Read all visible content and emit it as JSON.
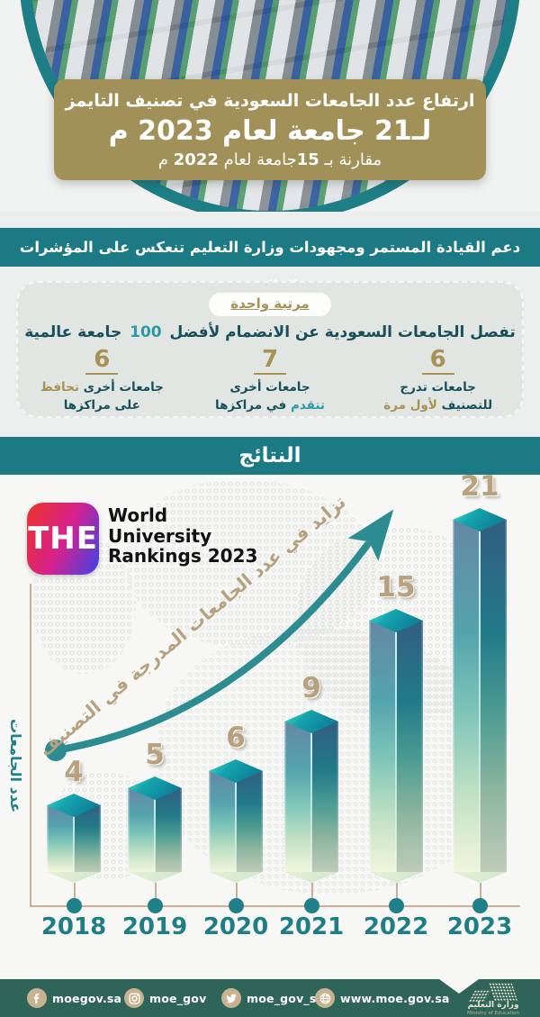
{
  "header": {
    "title_line1": "ارتفاع عدد الجامعات السعودية في تصنيف التايمز",
    "title_line2": "لـ21 جامعة لعام 2023 م",
    "line3": {
      "p1": "مقارنة بـ ",
      "n1": "15",
      "p2": "جامعة لعام ",
      "n2": "2022",
      "p3": " م"
    }
  },
  "support_banner": "دعم القيادة المستمر ومجهودات وزارة التعليم تنعكس على المؤشرات العالمية",
  "gap_card": {
    "badge": "مرتبة واحدة",
    "headline_prefix": "تفصل الجامعات السعودية عن الانضمام لأفضل",
    "headline_number": "100",
    "headline_suffix": "جامعة عالمية",
    "stats": [
      {
        "value": "6",
        "lines": [
          [
            {
              "t": "جامعات تدرج",
              "c": "dark"
            }
          ],
          [
            {
              "t": "للتصنيف",
              "c": "dark"
            },
            {
              "t": "لأول مرة",
              "c": "gold"
            }
          ]
        ]
      },
      {
        "value": "7",
        "lines": [
          [
            {
              "t": "جامعات أخرى",
              "c": "dark"
            }
          ],
          [
            {
              "t": "تتقدم",
              "c": "teal"
            },
            {
              "t": "في مراكزها",
              "c": "dark"
            }
          ]
        ]
      },
      {
        "value": "6",
        "lines": [
          [
            {
              "t": "جامعات أخرى",
              "c": "dark"
            },
            {
              "t": "تحافظ",
              "c": "gold"
            }
          ],
          [
            {
              "t": "على مراكزها",
              "c": "dark"
            }
          ]
        ]
      }
    ]
  },
  "results_title": "النتائج",
  "chart_meta": {
    "logo_text": "THE",
    "title_lines": [
      "World",
      "University",
      "Rankings 2023"
    ]
  },
  "chart_data": {
    "type": "bar",
    "title": "World University Rankings 2023",
    "categories": [
      "2018",
      "2019",
      "2020",
      "2021",
      "2022",
      "2023"
    ],
    "values": [
      4,
      5,
      6,
      9,
      15,
      21
    ],
    "ylabel": "عدد الجامعات",
    "xlabel": "",
    "annotation": "تزايد في عدد الجامعات المدرجة في التصنيف",
    "ylim": [
      0,
      21
    ],
    "grid": false,
    "legend_position": "none"
  },
  "footer": {
    "items": [
      {
        "icon": "facebook",
        "label": "moegov.sa"
      },
      {
        "icon": "instagram",
        "label": "moe_gov"
      },
      {
        "icon": "twitter",
        "label": "moe_gov_sa"
      },
      {
        "icon": "globe",
        "label": "www.moe.gov.sa"
      }
    ],
    "logo_ar": "وزارة التعليم",
    "logo_en": "Ministry of Education"
  },
  "colors": {
    "teal_band": "#1b7a83",
    "gold": "#a79355",
    "accent_teal": "#2d9aa3",
    "bar_number_tan": "#b7a17e",
    "footer_green": "#2f6458",
    "axis_tan": "#cbb091"
  }
}
